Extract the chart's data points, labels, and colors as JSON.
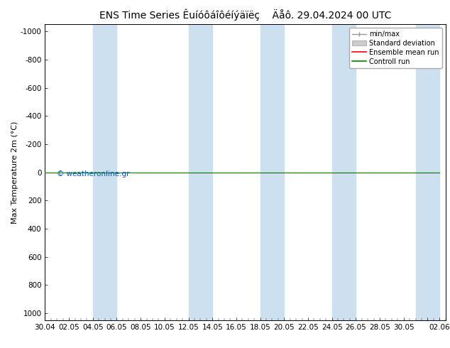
{
  "title": "ENS Time Series Êuíóôáîôéíýäïëç    Äåô. 29.04.2024 00 UTC",
  "ylabel": "Max Temperature 2m (°C)",
  "yticks": [
    -1000,
    -800,
    -600,
    -400,
    -200,
    0,
    200,
    400,
    600,
    800,
    1000
  ],
  "ylim_top": -1050,
  "ylim_bottom": 1050,
  "background_color": "#ffffff",
  "plot_bg_color": "#ffffff",
  "band_color": "#cce0f0",
  "watermark": "© weatheronline.gr",
  "xtick_labels": [
    "30.04",
    "02.05",
    "04.05",
    "06.05",
    "08.05",
    "10.05",
    "12.05",
    "14.05",
    "16.05",
    "18.05",
    "20.05",
    "22.05",
    "24.05",
    "26.05",
    "28.05",
    "30.05",
    "",
    "02.06"
  ],
  "xtick_positions": [
    0,
    2,
    4,
    6,
    8,
    10,
    12,
    14,
    16,
    18,
    20,
    22,
    24,
    26,
    28,
    30,
    32,
    33
  ],
  "x_min": 0,
  "x_max": 33,
  "legend_entries": [
    "min/max",
    "Standard deviation",
    "Ensemble mean run",
    "Controll run"
  ],
  "green_line_color": "#008800",
  "red_line_color": "#ff0000",
  "title_fontsize": 10,
  "tick_fontsize": 7.5,
  "ylabel_fontsize": 8,
  "band_positions": [
    [
      4,
      6
    ],
    [
      12,
      14
    ],
    [
      18,
      20
    ],
    [
      24,
      26
    ],
    [
      31,
      33
    ]
  ]
}
